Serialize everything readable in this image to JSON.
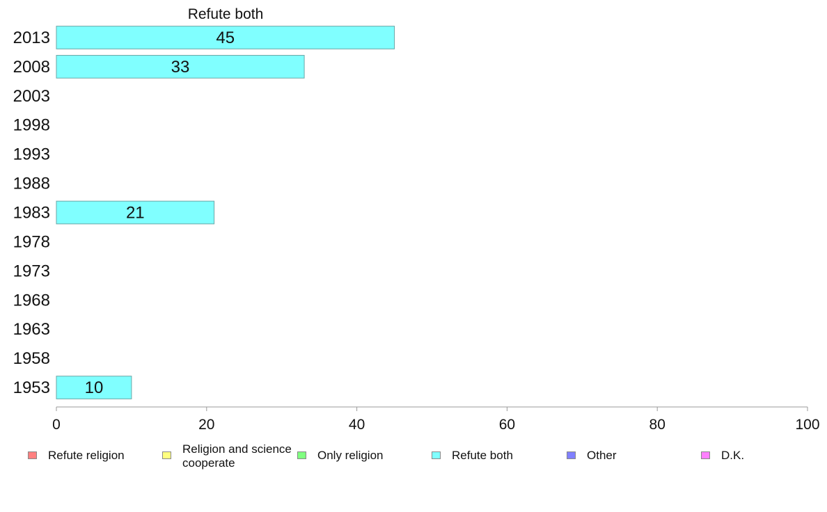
{
  "chart_data": {
    "type": "bar",
    "orientation": "horizontal",
    "title": "Refute both",
    "categories": [
      "2013",
      "2008",
      "2003",
      "1998",
      "1993",
      "1988",
      "1983",
      "1978",
      "1973",
      "1968",
      "1963",
      "1958",
      "1953"
    ],
    "series": [
      {
        "name": "Refute both",
        "color": "#80ffff",
        "values": [
          45,
          33,
          null,
          null,
          null,
          null,
          21,
          null,
          null,
          null,
          null,
          null,
          10
        ]
      }
    ],
    "x_ticks": [
      "0",
      "20",
      "40",
      "60",
      "80",
      "100"
    ],
    "xlim": [
      0,
      100
    ],
    "xlabel": "",
    "ylabel": "",
    "grid": false,
    "legend_position": "bottom"
  },
  "legend": {
    "items": [
      {
        "label": "Refute religion",
        "color": "#ff8080"
      },
      {
        "label": "Religion and science cooperate",
        "color": "#ffff80"
      },
      {
        "label": "Only religion",
        "color": "#80ff80"
      },
      {
        "label": "Refute both",
        "color": "#80ffff"
      },
      {
        "label": "Other",
        "color": "#8080ff"
      },
      {
        "label": "D.K.",
        "color": "#ff80ff"
      }
    ]
  }
}
